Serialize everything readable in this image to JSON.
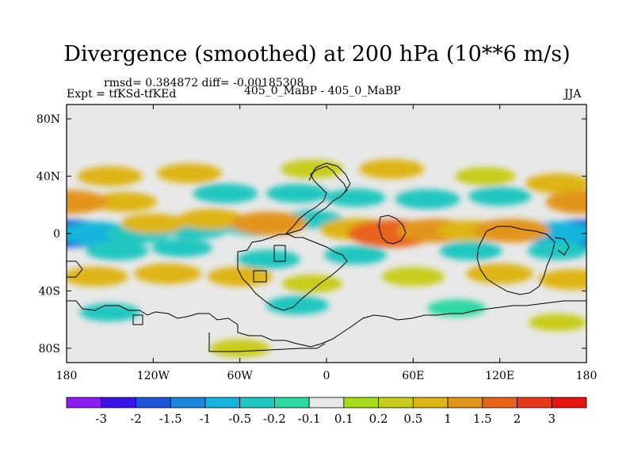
{
  "chart_data": {
    "type": "heatmap",
    "title": "Divergence (smoothed) at 200 hPa (10**6 m/s)",
    "stats": "rmsd= 0.384872 diff= -0.00185308",
    "left_label": "Expt = tfKSd-tfKEd",
    "center_label": "405_0_MaBP - 405_0_MaBP",
    "right_label": "JJA",
    "x_ticks": [
      "180",
      "120W",
      "60W",
      "0",
      "60E",
      "120E",
      "180"
    ],
    "x_tick_values": [
      -180,
      -120,
      -60,
      0,
      60,
      120,
      180
    ],
    "y_ticks": [
      "80N",
      "40N",
      "0",
      "40S",
      "80S"
    ],
    "y_tick_values": [
      80,
      40,
      0,
      -40,
      -80
    ],
    "xlim": [
      -180,
      180
    ],
    "ylim": [
      -90,
      90
    ],
    "colorbar": {
      "labels": [
        "-3",
        "-2",
        "-1.5",
        "-1",
        "-0.5",
        "-0.2",
        "-0.1",
        "0.1",
        "0.2",
        "0.5",
        "1",
        "1.5",
        "2",
        "3"
      ],
      "colors": [
        "#8a1cf0",
        "#3a14e6",
        "#1f56d8",
        "#1b86d8",
        "#16b4dc",
        "#20c6c0",
        "#2ed8a0",
        "#e8e8e8",
        "#a6dc1c",
        "#c8cc1c",
        "#deb418",
        "#e2941a",
        "#e8641a",
        "#e83a1a",
        "#e41410"
      ]
    },
    "features": [
      {
        "lon": -178,
        "lat": 0,
        "value": -2.0
      },
      {
        "lon": 178,
        "lat": 0,
        "value": -2.0
      },
      {
        "lon": -160,
        "lat": 0,
        "value": -1.0
      },
      {
        "lon": 160,
        "lat": 0,
        "value": -1.0
      },
      {
        "lon": -130,
        "lat": 0,
        "value": -0.5
      },
      {
        "lon": -90,
        "lat": 3,
        "value": -0.5
      },
      {
        "lon": -50,
        "lat": 5,
        "value": -0.5
      },
      {
        "lon": -10,
        "lat": 10,
        "value": -0.3
      },
      {
        "lon": 20,
        "lat": 3,
        "value": 0.8
      },
      {
        "lon": 45,
        "lat": 0,
        "value": 1.5
      },
      {
        "lon": 75,
        "lat": 2,
        "value": 1.0
      },
      {
        "lon": 100,
        "lat": 2,
        "value": 0.6
      },
      {
        "lon": 128,
        "lat": 2,
        "value": 1.0
      },
      {
        "lon": -120,
        "lat": 7,
        "value": 0.5
      },
      {
        "lon": -80,
        "lat": 10,
        "value": 0.6
      },
      {
        "lon": -40,
        "lat": 7,
        "value": 1.0
      },
      {
        "lon": -140,
        "lat": 22,
        "value": 0.5
      },
      {
        "lon": -70,
        "lat": 28,
        "value": -0.5
      },
      {
        "lon": -20,
        "lat": 28,
        "value": -0.4
      },
      {
        "lon": 20,
        "lat": 25,
        "value": -0.3
      },
      {
        "lon": 70,
        "lat": 24,
        "value": -0.5
      },
      {
        "lon": 120,
        "lat": 26,
        "value": -0.4
      },
      {
        "lon": -150,
        "lat": 40,
        "value": 0.5
      },
      {
        "lon": -95,
        "lat": 42,
        "value": 0.5
      },
      {
        "lon": -10,
        "lat": 45,
        "value": 0.4
      },
      {
        "lon": 45,
        "lat": 45,
        "value": 0.5
      },
      {
        "lon": 110,
        "lat": 40,
        "value": 0.3
      },
      {
        "lon": 160,
        "lat": 35,
        "value": 0.5
      },
      {
        "lon": 178,
        "lat": 22,
        "value": 1.0
      },
      {
        "lon": -178,
        "lat": 22,
        "value": 1.0
      },
      {
        "lon": -145,
        "lat": -12,
        "value": -0.4
      },
      {
        "lon": -100,
        "lat": -10,
        "value": -0.3
      },
      {
        "lon": -40,
        "lat": -18,
        "value": -0.4
      },
      {
        "lon": 20,
        "lat": -15,
        "value": -0.4
      },
      {
        "lon": 100,
        "lat": -12,
        "value": -0.4
      },
      {
        "lon": 160,
        "lat": -12,
        "value": -0.3
      },
      {
        "lon": -160,
        "lat": -30,
        "value": 0.5
      },
      {
        "lon": -110,
        "lat": -28,
        "value": 0.6
      },
      {
        "lon": -60,
        "lat": -30,
        "value": 0.5
      },
      {
        "lon": -10,
        "lat": -35,
        "value": 0.3
      },
      {
        "lon": 60,
        "lat": -30,
        "value": 0.4
      },
      {
        "lon": 120,
        "lat": -28,
        "value": 0.6
      },
      {
        "lon": 170,
        "lat": -32,
        "value": 0.6
      },
      {
        "lon": -150,
        "lat": -55,
        "value": -0.3
      },
      {
        "lon": -20,
        "lat": -50,
        "value": -0.4
      },
      {
        "lon": 90,
        "lat": -52,
        "value": -0.2
      },
      {
        "lon": -60,
        "lat": -80,
        "value": 0.3
      },
      {
        "lon": 160,
        "lat": -62,
        "value": 0.2
      }
    ]
  }
}
